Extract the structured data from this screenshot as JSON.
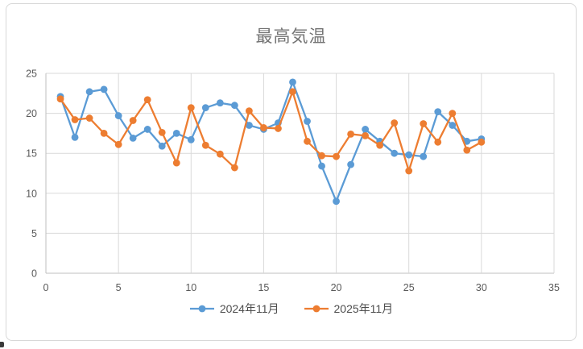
{
  "chart_title": "最高気温",
  "colors": {
    "series_2024": "#5B9BD5",
    "series_2025": "#ED7D31",
    "title_text": "#737373",
    "axis_text": "#595959",
    "gridline": "#D9D9D9",
    "axis_line": "#BFBFBF",
    "frame_border": "#D8D8D8"
  },
  "chart_data": {
    "type": "line",
    "title": "最高気温",
    "xlabel": "",
    "ylabel": "",
    "xlim": [
      0,
      35
    ],
    "ylim": [
      0,
      25
    ],
    "x_ticks": [
      0,
      5,
      10,
      15,
      20,
      25,
      30,
      35
    ],
    "y_ticks": [
      0,
      5,
      10,
      15,
      20,
      25
    ],
    "grid": true,
    "legend_position": "bottom",
    "marker": "circle",
    "x": [
      1,
      2,
      3,
      4,
      5,
      6,
      7,
      8,
      9,
      10,
      11,
      12,
      13,
      14,
      15,
      16,
      17,
      18,
      19,
      20,
      21,
      22,
      23,
      24,
      25,
      26,
      27,
      28,
      29,
      30
    ],
    "series": [
      {
        "name": "2024年11月",
        "color": "#5B9BD5",
        "values": [
          22.1,
          17.0,
          22.7,
          23.0,
          19.7,
          16.9,
          18.0,
          15.9,
          17.5,
          16.7,
          20.7,
          21.3,
          21.0,
          18.5,
          18.0,
          18.8,
          23.9,
          19.0,
          13.4,
          9.0,
          13.6,
          18.0,
          16.5,
          15.0,
          14.8,
          14.6,
          20.2,
          18.5,
          16.5,
          16.8
        ]
      },
      {
        "name": "2025年11月",
        "color": "#ED7D31",
        "values": [
          21.8,
          19.2,
          19.4,
          17.5,
          16.1,
          19.1,
          21.7,
          17.6,
          13.8,
          20.7,
          16.0,
          14.9,
          13.2,
          20.3,
          18.2,
          18.1,
          22.7,
          16.5,
          14.7,
          14.6,
          17.4,
          17.2,
          16.0,
          18.8,
          12.8,
          18.7,
          16.4,
          20.0,
          15.4,
          16.4
        ]
      }
    ]
  }
}
